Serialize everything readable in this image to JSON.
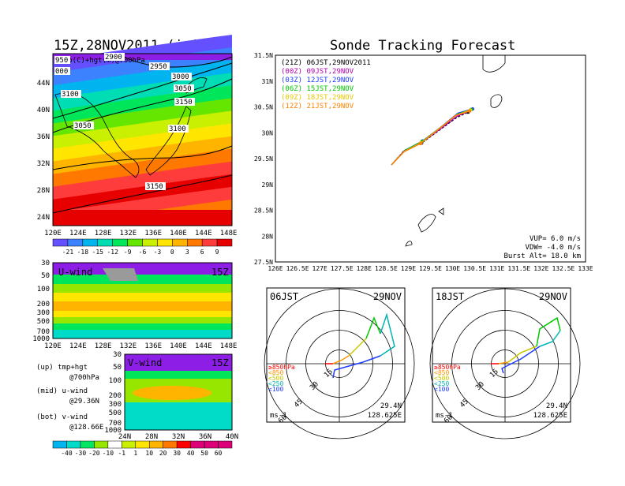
{
  "colors": {
    "brand_trajectory": [
      "#000000",
      "#b400b4",
      "#1e3cff",
      "#00c800",
      "#e6c800",
      "#ff8000"
    ],
    "temp_scale": [
      "#8c1ee6",
      "#6450ff",
      "#3c82ff",
      "#00b4f0",
      "#00dcb4",
      "#00e65a",
      "#64e600",
      "#c8f000",
      "#ffe600",
      "#ffb400",
      "#ff7800",
      "#ff3c3c",
      "#e60000",
      "#c8003c"
    ],
    "wind_scale": [
      "#00b4f0",
      "#00dcc8",
      "#00e664",
      "#96e600",
      "#c8f000",
      "#ffe600",
      "#ffb400",
      "#ff7800",
      "#ff0000",
      "#dc0078"
    ]
  },
  "chart_data": [
    {
      "type": "heatmap",
      "title": "15Z,28NOV2011 (init)",
      "subtitle": "Temp(C)+hgt(m)@700hPa",
      "x_ticks": [
        "120E",
        "124E",
        "128E",
        "132E",
        "136E",
        "140E",
        "144E",
        "148E"
      ],
      "y_ticks": [
        "24N",
        "28N",
        "32N",
        "36N",
        "40N",
        "44N"
      ],
      "contours": [
        "2900",
        "2950",
        "3000",
        "3050",
        "3100",
        "3150",
        "3050",
        "3100",
        "3150",
        "950",
        "000"
      ],
      "colorbar_ticks": [
        "-21",
        "-18",
        "-15",
        "-12",
        "-9",
        "-6",
        "-3",
        "0",
        "3",
        "6",
        "9"
      ]
    },
    {
      "type": "heatmap",
      "label": "U-wind",
      "time": "15Z",
      "y_ticks": [
        "30",
        "50",
        "100",
        "200",
        "300",
        "500",
        "700",
        "1000"
      ],
      "x_ticks": [
        "120E",
        "124E",
        "128E",
        "132E",
        "136E",
        "140E",
        "144E",
        "148E"
      ]
    },
    {
      "type": "heatmap",
      "label": "V-wind",
      "time": "15Z",
      "y_ticks": [
        "30",
        "50",
        "100",
        "200",
        "300",
        "500",
        "700",
        "1000"
      ],
      "x_ticks": [
        "24N",
        "28N",
        "32N",
        "36N",
        "40N"
      ],
      "colorbar_ticks": [
        "-40",
        "-30",
        "-20",
        "-10",
        "-1",
        "1",
        "10",
        "20",
        "30",
        "40",
        "50",
        "60"
      ]
    },
    {
      "type": "line",
      "title": "Sonde Tracking Forecast",
      "x_ticks": [
        "126E",
        "126.5E",
        "127E",
        "127.5E",
        "128E",
        "128.5E",
        "129E",
        "129.5E",
        "130E",
        "130.5E",
        "131E",
        "131.5E",
        "132E",
        "132.5E",
        "133E"
      ],
      "y_ticks": [
        "31.5N",
        "31N",
        "30.5N",
        "30N",
        "29.5N",
        "29N",
        "28.5N",
        "28N",
        "27.5N"
      ],
      "xlim": [
        126,
        133
      ],
      "ylim": [
        27.5,
        31.5
      ],
      "legend": [
        "(21Z) 06JST,29NOV2011",
        "(00Z) 09JST,29NOV",
        "(03Z) 12JST,29NOV",
        "(06Z) 15JST,29NOV",
        "(09Z) 18JST,29NOV",
        "(12Z) 21JST,29NOV"
      ],
      "series": [
        {
          "name": "(21Z) 06JST,29NOV2011",
          "x": [
            128.62,
            128.9,
            129.3,
            129.7,
            130.1,
            130.35
          ],
          "y": [
            29.38,
            29.65,
            29.8,
            30.05,
            30.3,
            30.4
          ]
        },
        {
          "name": "(00Z) 09JST,29NOV",
          "x": [
            128.62,
            128.92,
            129.3,
            129.7,
            130.1,
            130.38
          ],
          "y": [
            29.38,
            29.66,
            29.81,
            30.06,
            30.32,
            30.42
          ]
        },
        {
          "name": "(03Z) 12JST,29NOV",
          "x": [
            128.62,
            128.94,
            129.32,
            129.72,
            130.12,
            130.45
          ],
          "y": [
            29.38,
            29.67,
            29.84,
            30.1,
            30.38,
            30.46
          ]
        },
        {
          "name": "(06Z) 15JST,29NOV",
          "x": [
            128.62,
            128.93,
            129.31,
            129.71,
            130.11,
            130.42
          ],
          "y": [
            29.38,
            29.66,
            29.83,
            30.09,
            30.36,
            30.45
          ]
        },
        {
          "name": "(09Z) 18JST,29NOV",
          "x": [
            128.62,
            128.91,
            129.28,
            129.68,
            130.08,
            130.4
          ],
          "y": [
            29.38,
            29.64,
            29.8,
            30.07,
            30.34,
            30.44
          ]
        },
        {
          "name": "(12Z) 21JST,29NOV",
          "x": [
            128.62,
            128.9,
            129.27,
            129.66,
            130.06,
            130.38
          ],
          "y": [
            29.38,
            29.63,
            29.79,
            30.05,
            30.33,
            30.42
          ]
        }
      ],
      "annotations": [
        "VUP= 6.0 m/s",
        "VDW= -4.0 m/s",
        "Burst Alt= 18.0 km"
      ]
    },
    {
      "type": "scatter",
      "label": "06JST",
      "date": "29NOV",
      "rings": [
        "15",
        "30",
        "45",
        "60"
      ],
      "unit": "ms-1",
      "location": [
        "29.4N",
        "128.625E"
      ],
      "levels": [
        "≥850hPa",
        "<850",
        "<500",
        "<250",
        "<100"
      ]
    },
    {
      "type": "scatter",
      "label": "18JST",
      "date": "29NOV",
      "rings": [
        "15",
        "30",
        "45",
        "60"
      ],
      "unit": "ms-1",
      "location": [
        "29.4N",
        "128.625E"
      ],
      "levels": [
        "≥850hPa",
        "<850",
        "<500",
        "<250",
        "<100"
      ]
    }
  ],
  "side_notes": [
    "(up) tmp+hgt",
    "@700hPa",
    "(mid) u-wind",
    "@29.36N",
    "(bot) v-wind",
    "@128.66E"
  ]
}
